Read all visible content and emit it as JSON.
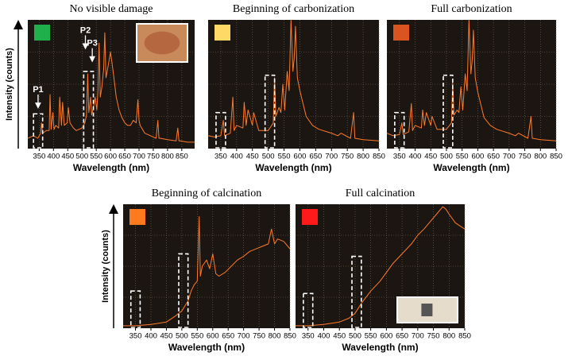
{
  "chart_data": [
    {
      "type": "line",
      "title": "No visible damage",
      "swatch_color": "#1fb04b",
      "ylabel": "Intensity (counts)",
      "xlabel": "Wavelength (nm)",
      "xlim": [
        310,
        895
      ],
      "xticks": [
        350,
        400,
        450,
        500,
        550,
        600,
        650,
        700,
        750,
        800,
        850
      ],
      "ylim": [
        0,
        100
      ],
      "grid": true,
      "color": "#ff7a2a",
      "x": [
        310,
        330,
        345,
        355,
        358,
        362,
        375,
        385,
        388,
        392,
        398,
        402,
        408,
        418,
        422,
        428,
        432,
        438,
        448,
        452,
        458,
        470,
        480,
        500,
        510,
        516,
        520,
        524,
        530,
        534,
        540,
        546,
        552,
        556,
        560,
        564,
        570,
        576,
        580,
        584,
        590,
        596,
        600,
        606,
        612,
        620,
        630,
        640,
        650,
        660,
        670,
        680,
        690,
        696,
        700,
        704,
        720,
        740,
        760,
        766,
        770,
        774,
        800,
        830,
        836,
        840,
        844,
        870,
        895
      ],
      "values": [
        8,
        10,
        8,
        12,
        20,
        12,
        14,
        14,
        42,
        15,
        28,
        15,
        18,
        16,
        40,
        18,
        36,
        18,
        20,
        32,
        20,
        16,
        14,
        16,
        20,
        26,
        58,
        28,
        40,
        26,
        32,
        40,
        30,
        45,
        82,
        40,
        48,
        62,
        90,
        55,
        62,
        70,
        75,
        65,
        55,
        40,
        30,
        24,
        20,
        18,
        18,
        22,
        20,
        38,
        22,
        18,
        12,
        10,
        8,
        22,
        8,
        8,
        7,
        6,
        16,
        6,
        6,
        5,
        5
      ],
      "regions": [
        {
          "x": [
            330,
            362
          ],
          "y": [
            0,
            27
          ]
        },
        {
          "x": [
            506,
            540
          ],
          "y": [
            0,
            60
          ]
        }
      ],
      "annotations": [
        {
          "text": "P1",
          "x": 346,
          "y": 42
        },
        {
          "text": "P2",
          "x": 512,
          "y": 88
        },
        {
          "text": "P3",
          "x": 536,
          "y": 78
        }
      ]
    },
    {
      "type": "line",
      "title": "Beginning of carbonization",
      "swatch_color": "#ffd966",
      "xlabel": "Wavelength (nm)",
      "xlim": [
        310,
        850
      ],
      "xticks": [
        350,
        400,
        450,
        500,
        550,
        600,
        650,
        700,
        750,
        800,
        850
      ],
      "ylim": [
        0,
        100
      ],
      "grid": true,
      "color": "#ff7a2a",
      "x": [
        310,
        330,
        350,
        358,
        362,
        380,
        388,
        392,
        400,
        420,
        424,
        430,
        436,
        450,
        454,
        470,
        500,
        516,
        520,
        524,
        534,
        540,
        546,
        552,
        560,
        566,
        572,
        578,
        582,
        586,
        592,
        600,
        610,
        620,
        640,
        660,
        700,
        720,
        730,
        760,
        770,
        774,
        800,
        850
      ],
      "values": [
        10,
        9,
        10,
        22,
        10,
        12,
        40,
        14,
        18,
        16,
        36,
        18,
        30,
        18,
        28,
        14,
        14,
        20,
        55,
        25,
        32,
        28,
        50,
        30,
        60,
        45,
        100,
        60,
        70,
        95,
        55,
        45,
        35,
        25,
        18,
        15,
        12,
        10,
        12,
        8,
        28,
        8,
        7,
        6
      ],
      "regions": [
        {
          "x": [
            335,
            365
          ],
          "y": [
            0,
            28
          ]
        },
        {
          "x": [
            490,
            520
          ],
          "y": [
            0,
            57
          ]
        }
      ]
    },
    {
      "type": "line",
      "title": "Full carbonization",
      "swatch_color": "#d9541e",
      "xlabel": "Wavelength (nm)",
      "xlim": [
        310,
        850
      ],
      "xticks": [
        350,
        400,
        450,
        500,
        550,
        600,
        650,
        700,
        750,
        800,
        850
      ],
      "ylim": [
        0,
        100
      ],
      "grid": true,
      "color": "#ff7a2a",
      "x": [
        310,
        330,
        350,
        358,
        362,
        380,
        388,
        392,
        400,
        420,
        424,
        430,
        436,
        450,
        454,
        470,
        500,
        516,
        520,
        524,
        534,
        540,
        546,
        552,
        560,
        566,
        572,
        578,
        582,
        586,
        592,
        600,
        610,
        620,
        640,
        660,
        700,
        720,
        730,
        760,
        770,
        774,
        800,
        850
      ],
      "values": [
        12,
        10,
        11,
        20,
        11,
        13,
        35,
        14,
        18,
        16,
        30,
        18,
        28,
        18,
        25,
        15,
        15,
        20,
        52,
        26,
        30,
        28,
        48,
        30,
        58,
        45,
        100,
        58,
        68,
        92,
        55,
        44,
        34,
        24,
        18,
        15,
        12,
        10,
        12,
        8,
        25,
        8,
        7,
        6
      ],
      "regions": [
        {
          "x": [
            335,
            365
          ],
          "y": [
            0,
            28
          ]
        },
        {
          "x": [
            490,
            520
          ],
          "y": [
            0,
            57
          ]
        }
      ]
    },
    {
      "type": "line",
      "title": "Beginning of calcination",
      "swatch_color": "#ff7a1f",
      "ylabel": "Intensity (counts)",
      "xlabel": "Wavelength (nm)",
      "xlim": [
        310,
        850
      ],
      "xticks": [
        350,
        400,
        450,
        500,
        550,
        600,
        650,
        700,
        750,
        800,
        850
      ],
      "ylim": [
        0,
        100
      ],
      "grid": true,
      "color": "#ff7a2a",
      "x": [
        310,
        350,
        400,
        450,
        480,
        500,
        520,
        530,
        540,
        550,
        556,
        560,
        566,
        580,
        590,
        600,
        610,
        620,
        640,
        660,
        680,
        700,
        720,
        740,
        760,
        780,
        790,
        800,
        810,
        830,
        850
      ],
      "values": [
        2,
        2,
        3,
        5,
        10,
        14,
        22,
        30,
        35,
        38,
        90,
        42,
        50,
        55,
        48,
        60,
        44,
        42,
        45,
        50,
        55,
        58,
        62,
        64,
        66,
        68,
        80,
        68,
        72,
        70,
        64
      ],
      "regions": [
        {
          "x": [
            335,
            365
          ],
          "y": [
            0,
            30
          ]
        },
        {
          "x": [
            490,
            520
          ],
          "y": [
            0,
            60
          ]
        }
      ]
    },
    {
      "type": "line",
      "title": "Full calcination",
      "swatch_color": "#ff1a1a",
      "xlabel": "Wavelength (nm)",
      "xlim": [
        310,
        850
      ],
      "xticks": [
        350,
        400,
        450,
        500,
        550,
        600,
        650,
        700,
        750,
        800,
        850
      ],
      "ylim": [
        0,
        100
      ],
      "grid": true,
      "color": "#ff7a2a",
      "x": [
        310,
        350,
        400,
        450,
        480,
        500,
        520,
        550,
        580,
        600,
        620,
        650,
        680,
        700,
        720,
        740,
        760,
        780,
        790,
        800,
        820,
        850
      ],
      "values": [
        2,
        2,
        3,
        5,
        8,
        12,
        20,
        30,
        38,
        45,
        52,
        60,
        68,
        75,
        80,
        86,
        92,
        98,
        96,
        92,
        85,
        80
      ],
      "regions": [
        {
          "x": [
            335,
            365
          ],
          "y": [
            0,
            28
          ]
        },
        {
          "x": [
            490,
            520
          ],
          "y": [
            0,
            58
          ]
        }
      ]
    }
  ]
}
